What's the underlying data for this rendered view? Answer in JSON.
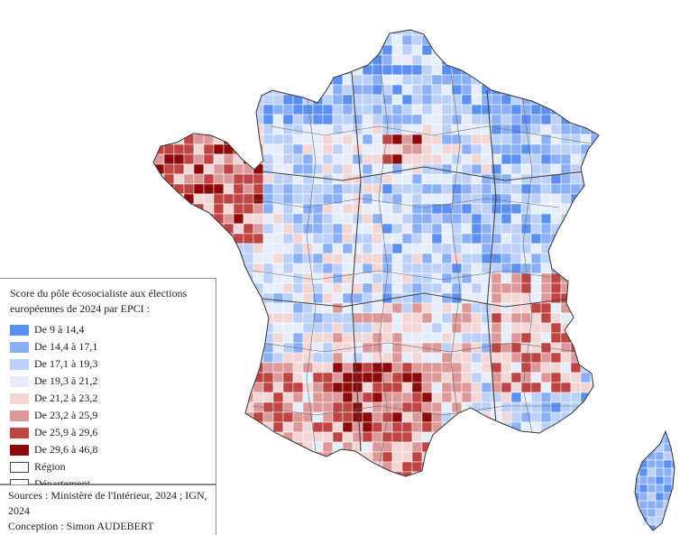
{
  "legend": {
    "title": "Score du pôle écosocialiste aux élections européennes de 2024 par EPCI :",
    "classes": [
      {
        "label": "De 9 à 14,4",
        "color": "#5b8ff0"
      },
      {
        "label": "De 14,4 à 17,1",
        "color": "#8cb0f5"
      },
      {
        "label": "De 17,1 à 19,3",
        "color": "#bcd1f8"
      },
      {
        "label": "De 19,3 à 21,2",
        "color": "#e6eefc"
      },
      {
        "label": "De 21,2 à 23,2",
        "color": "#f3d6d6"
      },
      {
        "label": "De 23,2 à 25,9",
        "color": "#dd9999"
      },
      {
        "label": "De 25,9 à 29,6",
        "color": "#bf4545"
      },
      {
        "label": "De 29,6 à 46,8",
        "color": "#8e0a0a"
      }
    ],
    "outlines": [
      {
        "label": "Région"
      },
      {
        "label": "Département"
      }
    ]
  },
  "sources": {
    "line1": "Sources : Ministère de l'Intérieur, 2024 ; IGN, 2024",
    "line2": "Conception : Simon AUDEBERT"
  }
}
